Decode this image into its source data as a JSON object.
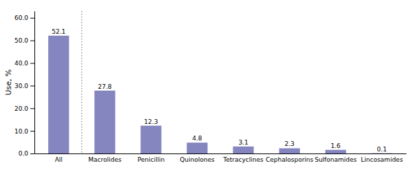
{
  "chart_data": {
    "type": "bar",
    "categories": [
      "All",
      "Macrolides",
      "Penicillin",
      "Quinolones",
      "Tetracyclines",
      "Cephalosporins",
      "Sulfonamides",
      "Lincosamides"
    ],
    "values": [
      52.1,
      27.8,
      12.3,
      4.8,
      3.1,
      2.3,
      1.6,
      0.1
    ],
    "color": "#8585c0",
    "ylabel": "Use, %",
    "ylim": [
      0,
      63.0
    ],
    "yticks": [
      {
        "value": 0.0,
        "label": "0.0"
      },
      {
        "value": 10.0,
        "label": "10.0"
      },
      {
        "value": 20.0,
        "label": "20.0"
      },
      {
        "value": 30.0,
        "label": "30.0"
      },
      {
        "value": 40.0,
        "label": "40.0"
      },
      {
        "value": 50.0,
        "label": "50.0"
      },
      {
        "value": 60.0,
        "label": "60.0"
      }
    ],
    "data_labels": true,
    "grid": false
  }
}
